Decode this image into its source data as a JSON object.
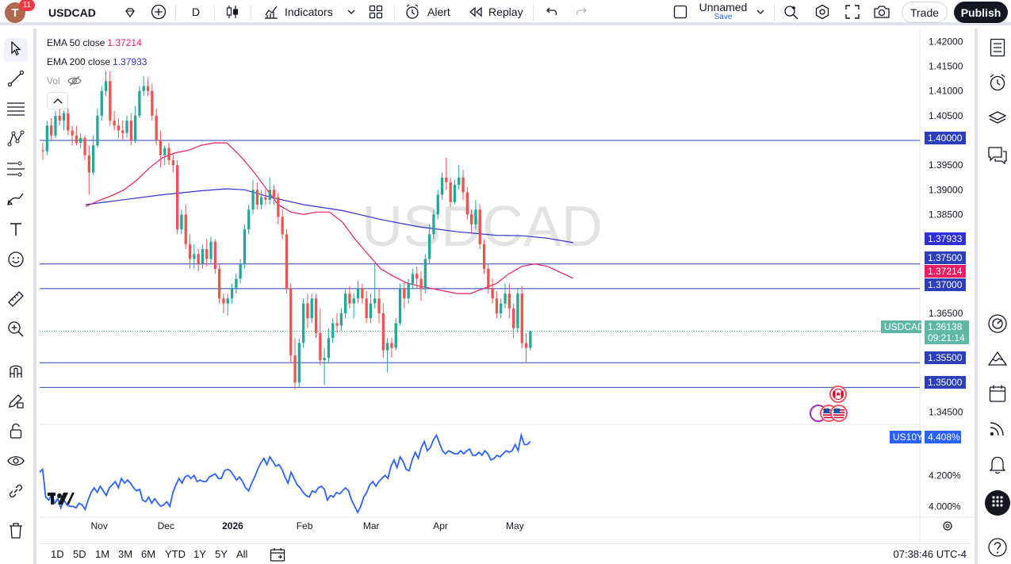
{
  "topbar": {
    "avatar_letter": "T",
    "notification_count": "11",
    "symbol": "USDCAD",
    "interval": "D",
    "indicators_label": "Indicators",
    "alert_label": "Alert",
    "replay_label": "Replay",
    "layout_title": "Unnamed",
    "layout_save": "Save",
    "trade_label": "Trade",
    "publish_label": "Publish"
  },
  "legend": {
    "ema50_label": "EMA 50 close",
    "ema50_value": "1.37214",
    "ema200_label": "EMA 200 close",
    "ema200_value": "1.37933",
    "vol_label": "Vol",
    "ema50_color": "#e91e63",
    "ema200_color": "#2f2fd6"
  },
  "chart_data": {
    "type": "candlestick",
    "symbol": "USDCAD",
    "watermark": "USDCAD",
    "y_ticks": [
      "1.42000",
      "1.41500",
      "1.41000",
      "1.40500",
      "1.39500",
      "1.39000",
      "1.38500",
      "1.36500",
      "1.34500"
    ],
    "ylim": [
      1.343,
      1.422
    ],
    "x_ticks": [
      "Nov",
      "Dec",
      "2026",
      "Feb",
      "Mar",
      "Apr",
      "May"
    ],
    "horizontal_levels": [
      "1.40000",
      "1.37500",
      "1.37000",
      "1.35500",
      "1.35000"
    ],
    "current_price": "1.36138",
    "countdown": "09:21:14",
    "ema50_badge": "1.37214",
    "ema200_badge": "1.37933",
    "colors": {
      "up": "#26a69a",
      "down": "#ef5350",
      "ema50": "#e91e63",
      "ema200": "#2f2fd6",
      "level": "#2b3fb8"
    },
    "candles": [
      [
        1.398,
        1.3995,
        1.396,
        1.3978
      ],
      [
        1.3978,
        1.404,
        1.397,
        1.403
      ],
      [
        1.403,
        1.4045,
        1.4,
        1.401
      ],
      [
        1.401,
        1.406,
        1.4005,
        1.405
      ],
      [
        1.405,
        1.407,
        1.403,
        1.404
      ],
      [
        1.404,
        1.406,
        1.402,
        1.4055
      ],
      [
        1.4055,
        1.4065,
        1.401,
        1.402
      ],
      [
        1.402,
        1.403,
        1.399,
        1.401
      ],
      [
        1.401,
        1.403,
        1.399,
        1.3995
      ],
      [
        1.3995,
        1.4015,
        1.3985,
        1.4005
      ],
      [
        1.4005,
        1.401,
        1.396,
        1.397
      ],
      [
        1.397,
        1.399,
        1.389,
        1.3935
      ],
      [
        1.3935,
        1.401,
        1.393,
        1.399
      ],
      [
        1.399,
        1.4065,
        1.3985,
        1.405
      ],
      [
        1.405,
        1.411,
        1.404,
        1.41
      ],
      [
        1.41,
        1.414,
        1.409,
        1.412
      ],
      [
        1.412,
        1.414,
        1.403,
        1.404
      ],
      [
        1.404,
        1.406,
        1.402,
        1.403
      ],
      [
        1.403,
        1.4045,
        1.4005,
        1.402
      ],
      [
        1.402,
        1.404,
        1.4,
        1.4015
      ],
      [
        1.4015,
        1.405,
        1.4005,
        1.404
      ],
      [
        1.404,
        1.4055,
        1.399,
        1.4
      ],
      [
        1.4,
        1.407,
        1.3995,
        1.405
      ],
      [
        1.405,
        1.411,
        1.4045,
        1.41
      ],
      [
        1.41,
        1.413,
        1.409,
        1.411
      ],
      [
        1.411,
        1.4125,
        1.409,
        1.41
      ],
      [
        1.41,
        1.4115,
        1.404,
        1.405
      ],
      [
        1.405,
        1.4065,
        1.399,
        1.4
      ],
      [
        1.4,
        1.402,
        1.3945,
        1.397
      ],
      [
        1.397,
        1.399,
        1.395,
        1.3985
      ],
      [
        1.3985,
        1.3995,
        1.395,
        1.396
      ],
      [
        1.396,
        1.3975,
        1.3935,
        1.395
      ],
      [
        1.395,
        1.396,
        1.381,
        1.382
      ],
      [
        1.382,
        1.386,
        1.381,
        1.385
      ],
      [
        1.385,
        1.387,
        1.378,
        1.379
      ],
      [
        1.379,
        1.381,
        1.374,
        1.376
      ],
      [
        1.376,
        1.379,
        1.374,
        1.377
      ],
      [
        1.377,
        1.378,
        1.3735,
        1.375
      ],
      [
        1.375,
        1.379,
        1.374,
        1.378
      ],
      [
        1.378,
        1.38,
        1.3745,
        1.376
      ],
      [
        1.376,
        1.3805,
        1.375,
        1.3795
      ],
      [
        1.3795,
        1.38,
        1.373,
        1.374
      ],
      [
        1.374,
        1.375,
        1.367,
        1.368
      ],
      [
        1.368,
        1.369,
        1.365,
        1.367
      ],
      [
        1.367,
        1.369,
        1.3645,
        1.368
      ],
      [
        1.368,
        1.371,
        1.367,
        1.37
      ],
      [
        1.37,
        1.373,
        1.369,
        1.372
      ],
      [
        1.372,
        1.376,
        1.371,
        1.375
      ],
      [
        1.375,
        1.383,
        1.374,
        1.382
      ],
      [
        1.382,
        1.387,
        1.381,
        1.386
      ],
      [
        1.386,
        1.392,
        1.385,
        1.39
      ],
      [
        1.39,
        1.3915,
        1.386,
        1.387
      ],
      [
        1.387,
        1.39,
        1.386,
        1.3885
      ],
      [
        1.3885,
        1.39,
        1.387,
        1.388
      ],
      [
        1.388,
        1.3925,
        1.387,
        1.39
      ],
      [
        1.39,
        1.391,
        1.387,
        1.3885
      ],
      [
        1.3885,
        1.3895,
        1.383,
        1.3845
      ],
      [
        1.3845,
        1.386,
        1.38,
        1.381
      ],
      [
        1.381,
        1.382,
        1.369,
        1.37
      ],
      [
        1.37,
        1.371,
        1.355,
        1.3565
      ],
      [
        1.3565,
        1.36,
        1.3495,
        1.351
      ],
      [
        1.351,
        1.36,
        1.35,
        1.359
      ],
      [
        1.359,
        1.368,
        1.358,
        1.367
      ],
      [
        1.367,
        1.369,
        1.362,
        1.364
      ],
      [
        1.364,
        1.369,
        1.363,
        1.368
      ],
      [
        1.368,
        1.369,
        1.36,
        1.361
      ],
      [
        1.361,
        1.366,
        1.3545,
        1.3555
      ],
      [
        1.3555,
        1.358,
        1.3505,
        1.356
      ],
      [
        1.356,
        1.362,
        1.355,
        1.36
      ],
      [
        1.36,
        1.364,
        1.359,
        1.363
      ],
      [
        1.363,
        1.365,
        1.361,
        1.3625
      ],
      [
        1.3625,
        1.366,
        1.3615,
        1.365
      ],
      [
        1.365,
        1.37,
        1.364,
        1.369
      ],
      [
        1.369,
        1.3705,
        1.366,
        1.367
      ],
      [
        1.367,
        1.369,
        1.364,
        1.368
      ],
      [
        1.368,
        1.3715,
        1.367,
        1.37
      ],
      [
        1.37,
        1.371,
        1.367,
        1.368
      ],
      [
        1.368,
        1.3695,
        1.363,
        1.364
      ],
      [
        1.364,
        1.369,
        1.363,
        1.367
      ],
      [
        1.367,
        1.375,
        1.366,
        1.368
      ],
      [
        1.368,
        1.37,
        1.363,
        1.365
      ],
      [
        1.365,
        1.367,
        1.356,
        1.3575
      ],
      [
        1.3575,
        1.36,
        1.353,
        1.359
      ],
      [
        1.359,
        1.36,
        1.356,
        1.358
      ],
      [
        1.358,
        1.364,
        1.3575,
        1.363
      ],
      [
        1.363,
        1.371,
        1.3625,
        1.37
      ],
      [
        1.37,
        1.3715,
        1.366,
        1.368
      ],
      [
        1.368,
        1.372,
        1.367,
        1.371
      ],
      [
        1.371,
        1.374,
        1.37,
        1.373
      ],
      [
        1.373,
        1.3745,
        1.37,
        1.372
      ],
      [
        1.372,
        1.3735,
        1.3675,
        1.37
      ],
      [
        1.37,
        1.377,
        1.369,
        1.376
      ],
      [
        1.376,
        1.383,
        1.375,
        1.381
      ],
      [
        1.381,
        1.386,
        1.38,
        1.385
      ],
      [
        1.385,
        1.39,
        1.384,
        1.389
      ],
      [
        1.389,
        1.3935,
        1.388,
        1.3925
      ],
      [
        1.3925,
        1.3965,
        1.39,
        1.3915
      ],
      [
        1.3915,
        1.3925,
        1.3865,
        1.3875
      ],
      [
        1.3875,
        1.392,
        1.387,
        1.391
      ],
      [
        1.391,
        1.395,
        1.39,
        1.3925
      ],
      [
        1.3925,
        1.394,
        1.388,
        1.3895
      ],
      [
        1.3895,
        1.3905,
        1.384,
        1.385
      ],
      [
        1.385,
        1.386,
        1.381,
        1.383
      ],
      [
        1.383,
        1.388,
        1.382,
        1.386
      ],
      [
        1.386,
        1.387,
        1.378,
        1.379
      ],
      [
        1.379,
        1.38,
        1.373,
        1.374
      ],
      [
        1.374,
        1.375,
        1.369,
        1.37
      ],
      [
        1.37,
        1.372,
        1.367,
        1.368
      ],
      [
        1.368,
        1.3695,
        1.364,
        1.365
      ],
      [
        1.365,
        1.368,
        1.364,
        1.367
      ],
      [
        1.367,
        1.371,
        1.366,
        1.369
      ],
      [
        1.369,
        1.371,
        1.364,
        1.366
      ],
      [
        1.366,
        1.367,
        1.36,
        1.362
      ],
      [
        1.362,
        1.37,
        1.361,
        1.369
      ],
      [
        1.369,
        1.3705,
        1.358,
        1.359
      ],
      [
        1.359,
        1.361,
        1.355,
        1.358
      ],
      [
        1.358,
        1.3615,
        1.3575,
        1.3614
      ]
    ],
    "ema50": [
      [
        0,
        1.3866
      ],
      [
        5,
        1.3878
      ],
      [
        10,
        1.3888
      ],
      [
        15,
        1.39
      ],
      [
        20,
        1.392
      ],
      [
        25,
        1.3945
      ],
      [
        30,
        1.3965
      ],
      [
        35,
        1.3975
      ],
      [
        40,
        1.398
      ],
      [
        45,
        1.399
      ],
      [
        50,
        1.3995
      ],
      [
        55,
        1.3995
      ],
      [
        60,
        1.397
      ],
      [
        65,
        1.394
      ],
      [
        70,
        1.3905
      ],
      [
        75,
        1.387
      ],
      [
        80,
        1.3855
      ],
      [
        85,
        1.385
      ],
      [
        90,
        1.3855
      ],
      [
        95,
        1.3855
      ],
      [
        100,
        1.3835
      ],
      [
        105,
        1.38
      ],
      [
        110,
        1.377
      ],
      [
        115,
        1.374
      ],
      [
        120,
        1.3725
      ],
      [
        125,
        1.3712
      ],
      [
        130,
        1.3705
      ],
      [
        135,
        1.37
      ],
      [
        140,
        1.3695
      ],
      [
        145,
        1.369
      ],
      [
        150,
        1.369
      ],
      [
        155,
        1.37
      ],
      [
        160,
        1.371
      ],
      [
        165,
        1.373
      ],
      [
        170,
        1.3745
      ],
      [
        175,
        1.375
      ],
      [
        180,
        1.3745
      ],
      [
        185,
        1.3733
      ],
      [
        190,
        1.3721
      ]
    ],
    "ema200": [
      [
        0,
        1.387
      ],
      [
        15,
        1.388
      ],
      [
        30,
        1.389
      ],
      [
        45,
        1.3898
      ],
      [
        55,
        1.3902
      ],
      [
        62,
        1.39
      ],
      [
        72,
        1.3885
      ],
      [
        85,
        1.387
      ],
      [
        100,
        1.3858
      ],
      [
        115,
        1.384
      ],
      [
        130,
        1.3825
      ],
      [
        145,
        1.3815
      ],
      [
        160,
        1.3808
      ],
      [
        170,
        1.3807
      ],
      [
        180,
        1.3802
      ],
      [
        190,
        1.3793
      ]
    ],
    "sub_pane": {
      "label": "US10Y",
      "value": "4.408%",
      "y_ticks": [
        "4.200%",
        "4.000%"
      ],
      "ylim": [
        3.94,
        4.52
      ],
      "color": "#2962ff",
      "values": [
        4.22,
        4.24,
        4.06,
        4.04,
        4.08,
        4.02,
        4.05,
        3.99,
        4.04,
        4.01,
        4.0,
        4.0,
        3.99,
        4.02,
        4.01,
        3.98,
        4.04,
        4.09,
        4.12,
        4.09,
        4.13,
        4.1,
        4.07,
        4.12,
        4.14,
        4.16,
        4.12,
        4.18,
        4.15,
        4.17,
        4.15,
        4.12,
        4.1,
        4.11,
        4.04,
        4.03,
        4.06,
        4.02,
        4.05,
        4.02,
        4.0,
        4.01,
        4.03,
        4.0,
        4.09,
        4.14,
        4.18,
        4.15,
        4.19,
        4.2,
        4.18,
        4.2,
        4.16,
        4.17,
        4.16,
        4.16,
        4.19,
        4.2,
        4.21,
        4.18,
        4.18,
        4.23,
        4.24,
        4.23,
        4.2,
        4.17,
        4.19,
        4.16,
        4.12,
        4.1,
        4.15,
        4.19,
        4.24,
        4.28,
        4.31,
        4.27,
        4.32,
        4.29,
        4.26,
        4.27,
        4.24,
        4.19,
        4.15,
        4.22,
        4.18,
        4.14,
        4.12,
        4.09,
        4.07,
        4.06,
        4.1,
        4.09,
        4.12,
        4.13,
        4.11,
        4.04,
        4.07,
        4.06,
        4.09,
        4.08,
        4.1,
        4.12,
        4.1,
        4.04,
        4.0,
        3.96,
        4.0,
        4.06,
        4.09,
        4.14,
        4.16,
        4.13,
        4.16,
        4.18,
        4.2,
        4.18,
        4.26,
        4.3,
        4.25,
        4.32,
        4.29,
        4.24,
        4.23,
        4.3,
        4.35,
        4.31,
        4.38,
        4.42,
        4.36,
        4.38,
        4.43,
        4.46,
        4.41,
        4.36,
        4.34,
        4.36,
        4.35,
        4.34,
        4.34,
        4.36,
        4.34,
        4.36,
        4.37,
        4.33,
        4.33,
        4.35,
        4.33,
        4.36,
        4.34,
        4.3,
        4.31,
        4.33,
        4.32,
        4.34,
        4.36,
        4.35,
        4.36,
        4.4,
        4.36,
        4.46,
        4.4,
        4.4,
        4.42
      ]
    }
  },
  "range_bar": {
    "ranges": [
      "1D",
      "5D",
      "1M",
      "3M",
      "6M",
      "YTD",
      "1Y",
      "5Y",
      "All"
    ],
    "clock": "07:38:46 UTC-4"
  }
}
